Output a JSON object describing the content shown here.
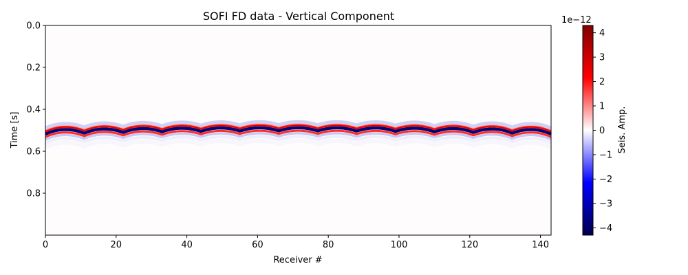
{
  "chart_data": {
    "type": "heatmap",
    "title": "SOFI FD data - Vertical Component",
    "xlabel": "Receiver #",
    "ylabel": "Time [s]",
    "xlim": [
      0,
      143
    ],
    "ylim": [
      1.0,
      0.0
    ],
    "y_inverted": true,
    "x_ticks": [
      "0",
      "20",
      "40",
      "60",
      "80",
      "100",
      "120",
      "140"
    ],
    "x_tick_values": [
      0,
      20,
      40,
      60,
      80,
      100,
      120,
      140
    ],
    "y_ticks": [
      "0.0",
      "0.2",
      "0.4",
      "0.6",
      "0.8"
    ],
    "y_tick_values": [
      0.0,
      0.2,
      0.4,
      0.6,
      0.8
    ],
    "colormap": "seismic",
    "colormap_stops": [
      "#00004c",
      "#0000ff",
      "#ffffff",
      "#ff0000",
      "#7f0000"
    ],
    "colorbar": {
      "label": "Seis. Amp.",
      "offset_text": "1e−12",
      "range": [
        -4.3,
        4.3
      ],
      "ticks": [
        "−4",
        "−3",
        "−2",
        "−1",
        "0",
        "1",
        "2",
        "3",
        "4"
      ],
      "tick_values": [
        -4,
        -3,
        -2,
        -1,
        0,
        1,
        2,
        3,
        4
      ]
    },
    "events": {
      "description": "direct arrival in scallops",
      "source_spacing_receivers": 11,
      "first_source_receiver": 5.5,
      "apex_time_s_center": 0.475,
      "apex_time_s_edges": 0.485,
      "cusp_time_s_center": 0.49,
      "cusp_time_s_edges": 0.505,
      "trough_time_offset_s": 0.013,
      "peak_time_offset_s": 0.027
    }
  }
}
